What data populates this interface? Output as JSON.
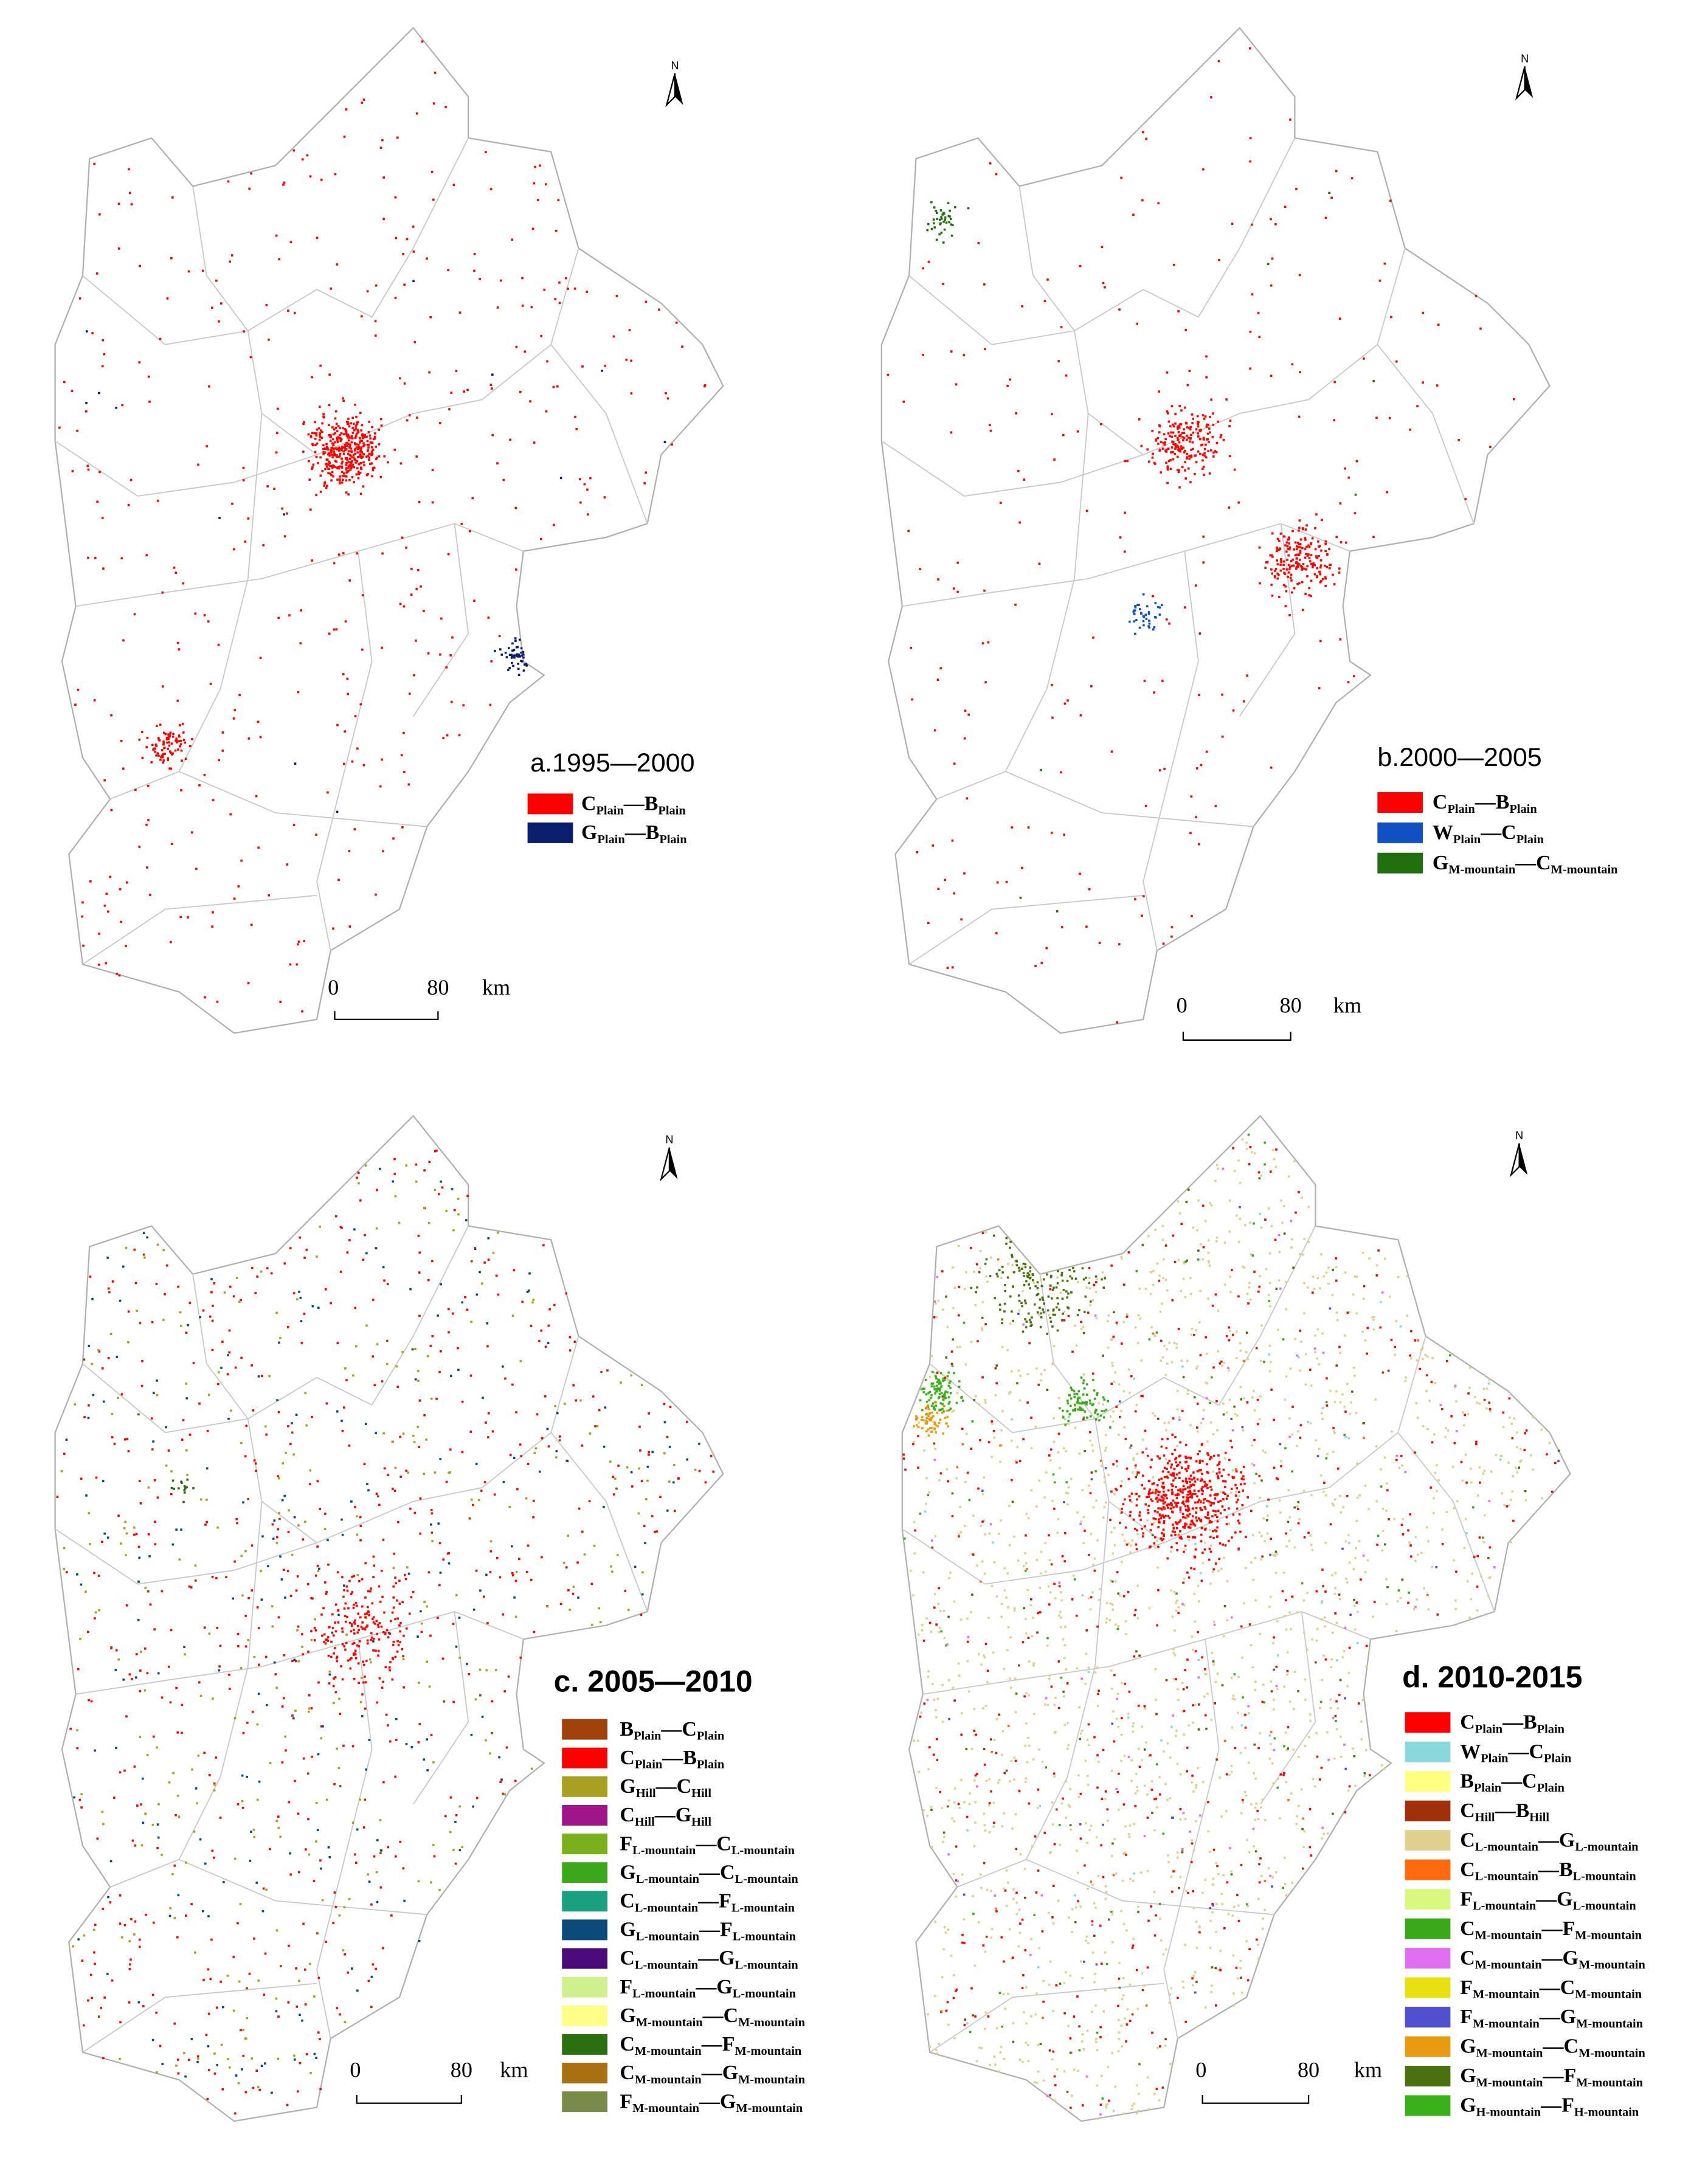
{
  "separator": "—",
  "panels": [
    {
      "title": "a.1995—2000",
      "north": "N",
      "scale": {
        "start": "0",
        "end": "80",
        "unit": "km"
      },
      "legend": [
        {
          "from": "C",
          "from_sub": "Plain",
          "to": "B",
          "to_sub": "Plain",
          "color": "#ff0000"
        },
        {
          "from": "G",
          "from_sub": "Plain",
          "to": "B",
          "to_sub": "Plain",
          "color": "#0a1e6e"
        }
      ]
    },
    {
      "title": "b.2000—2005",
      "north": "N",
      "scale": {
        "start": "0",
        "end": "80",
        "unit": "km"
      },
      "legend": [
        {
          "from": "C",
          "from_sub": "Plain",
          "to": "B",
          "to_sub": "Plain",
          "color": "#ff0000"
        },
        {
          "from": "W",
          "from_sub": "Plain",
          "to": "C",
          "to_sub": "Plain",
          "color": "#1050c0"
        },
        {
          "from": "G",
          "from_sub": "M-mountain",
          "to": "C",
          "to_sub": "M-mountain",
          "color": "#207010"
        }
      ]
    },
    {
      "title": "c. 2005—2010",
      "north": "N",
      "scale": {
        "start": "0",
        "end": "80",
        "unit": "km"
      },
      "legend": [
        {
          "from": "B",
          "from_sub": "Plain",
          "to": "C",
          "to_sub": "Plain",
          "color": "#a0400a"
        },
        {
          "from": "C",
          "from_sub": "Plain",
          "to": "B",
          "to_sub": "Plain",
          "color": "#ff0000"
        },
        {
          "from": "G",
          "from_sub": "Hill",
          "to": "C",
          "to_sub": "Hill",
          "color": "#a8a020"
        },
        {
          "from": "C",
          "from_sub": "Hill",
          "to": "G",
          "to_sub": "Hill",
          "color": "#a0158a"
        },
        {
          "from": "F",
          "from_sub": "L-mountain",
          "to": "C",
          "to_sub": "L-mountain",
          "color": "#7ab01c"
        },
        {
          "from": "G",
          "from_sub": "L-mountain",
          "to": "C",
          "to_sub": "L-mountain",
          "color": "#3aa81a"
        },
        {
          "from": "C",
          "from_sub": "L-mountain",
          "to": "F",
          "to_sub": "L-mountain",
          "color": "#1aa080"
        },
        {
          "from": "G",
          "from_sub": "L-mountain",
          "to": "F",
          "to_sub": "L-mountain",
          "color": "#0a4a7a"
        },
        {
          "from": "C",
          "from_sub": "L-mountain",
          "to": "G",
          "to_sub": "L-mountain",
          "color": "#4a0a7a"
        },
        {
          "from": "F",
          "from_sub": "L-mountain",
          "to": "G",
          "to_sub": "L-mountain",
          "color": "#d0f090"
        },
        {
          "from": "G",
          "from_sub": "M-mountain",
          "to": "C",
          "to_sub": "M-mountain",
          "color": "#ffff88"
        },
        {
          "from": "C",
          "from_sub": "M-mountain",
          "to": "F",
          "to_sub": "M-mountain",
          "color": "#2a7010"
        },
        {
          "from": "C",
          "from_sub": "M-mountain",
          "to": "G",
          "to_sub": "M-mountain",
          "color": "#a87010"
        },
        {
          "from": "F",
          "from_sub": "M-mountain",
          "to": "G",
          "to_sub": "M-mountain",
          "color": "#7a8a4a"
        }
      ]
    },
    {
      "title": "d. 2010-2015",
      "north": "N",
      "scale": {
        "start": "0",
        "end": "80",
        "unit": "km"
      },
      "legend": [
        {
          "from": "C",
          "from_sub": "Plain",
          "to": "B",
          "to_sub": "Plain",
          "color": "#ff0000"
        },
        {
          "from": "W",
          "from_sub": "Plain",
          "to": "C",
          "to_sub": "Plain",
          "color": "#8ad8dc"
        },
        {
          "from": "B",
          "from_sub": "Plain",
          "to": "C",
          "to_sub": "Plain",
          "color": "#ffff80"
        },
        {
          "from": "C",
          "from_sub": "Hill",
          "to": "B",
          "to_sub": "Hill",
          "color": "#a0300a"
        },
        {
          "from": "C",
          "from_sub": "L-mountain",
          "to": "G",
          "to_sub": "L-mountain",
          "color": "#e0d090"
        },
        {
          "from": "C",
          "from_sub": "L-mountain",
          "to": "B",
          "to_sub": "L-mountain",
          "color": "#ff6a10"
        },
        {
          "from": "F",
          "from_sub": "L-mountain",
          "to": "G",
          "to_sub": "L-mountain",
          "color": "#d8f880"
        },
        {
          "from": "C",
          "from_sub": "M-mountain",
          "to": "F",
          "to_sub": "M-mountain",
          "color": "#3aa81a"
        },
        {
          "from": "C",
          "from_sub": "M-mountain",
          "to": "G",
          "to_sub": "M-mountain",
          "color": "#e070f0"
        },
        {
          "from": "F",
          "from_sub": "M-mountain",
          "to": "C",
          "to_sub": "M-mountain",
          "color": "#e8e010"
        },
        {
          "from": "F",
          "from_sub": "M-mountain",
          "to": "G",
          "to_sub": "M-mountain",
          "color": "#5050d0"
        },
        {
          "from": "G",
          "from_sub": "M-mountain",
          "to": "C",
          "to_sub": "M-mountain",
          "color": "#e89a10"
        },
        {
          "from": "G",
          "from_sub": "M-mountain",
          "to": "F",
          "to_sub": "M-mountain",
          "color": "#4a7010"
        },
        {
          "from": "G",
          "from_sub": "H-mountain",
          "to": "F",
          "to_sub": "H-mountain",
          "color": "#3ab01a"
        }
      ]
    }
  ]
}
